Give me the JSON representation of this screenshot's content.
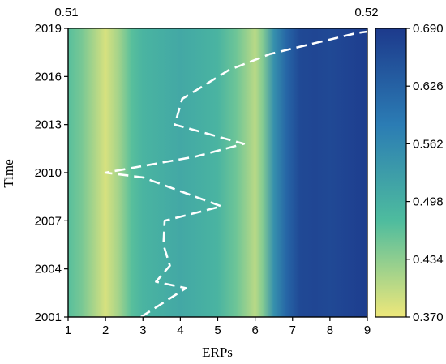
{
  "chart_data": {
    "type": "heatmap",
    "title": "",
    "xlabel": "ERPs",
    "ylabel": "Time",
    "x_ticks": [
      1,
      2,
      3,
      4,
      5,
      6,
      7,
      8,
      9
    ],
    "y_ticks": [
      2001,
      2004,
      2007,
      2010,
      2013,
      2016,
      2019
    ],
    "xlim": [
      1,
      9
    ],
    "ylim": [
      2001,
      2019
    ],
    "top_annotations": {
      "left": "0.51",
      "right": "0.52"
    },
    "colorbar": {
      "ticks": [
        "0.370",
        "0.434",
        "0.498",
        "0.562",
        "0.626",
        "0.690"
      ],
      "range": [
        0.37,
        0.69
      ],
      "colormap": [
        "#eee77a",
        "#4ebc9e",
        "#2b7cb4",
        "#1d3a8c"
      ]
    },
    "column_values": [
      {
        "x": 1.0,
        "v": 0.47
      },
      {
        "x": 1.35,
        "v": 0.45
      },
      {
        "x": 1.65,
        "v": 0.42
      },
      {
        "x": 2.0,
        "v": 0.385
      },
      {
        "x": 2.35,
        "v": 0.42
      },
      {
        "x": 2.7,
        "v": 0.47
      },
      {
        "x": 3.0,
        "v": 0.49
      },
      {
        "x": 3.5,
        "v": 0.5
      },
      {
        "x": 4.0,
        "v": 0.51
      },
      {
        "x": 4.5,
        "v": 0.5
      },
      {
        "x": 5.0,
        "v": 0.49
      },
      {
        "x": 5.5,
        "v": 0.455
      },
      {
        "x": 6.0,
        "v": 0.405
      },
      {
        "x": 6.2,
        "v": 0.44
      },
      {
        "x": 6.5,
        "v": 0.55
      },
      {
        "x": 6.85,
        "v": 0.62
      },
      {
        "x": 7.2,
        "v": 0.665
      },
      {
        "x": 7.6,
        "v": 0.67
      },
      {
        "x": 8.0,
        "v": 0.665
      },
      {
        "x": 8.5,
        "v": 0.675
      },
      {
        "x": 9.0,
        "v": 0.685
      }
    ],
    "dashed_line": {
      "color": "#ffffff",
      "points": [
        {
          "x": 2.95,
          "y": 2001.0
        },
        {
          "x": 4.15,
          "y": 2002.8
        },
        {
          "x": 3.35,
          "y": 2003.2
        },
        {
          "x": 3.72,
          "y": 2004.2
        },
        {
          "x": 3.55,
          "y": 2005.5
        },
        {
          "x": 3.58,
          "y": 2007.0
        },
        {
          "x": 5.1,
          "y": 2007.9
        },
        {
          "x": 3.0,
          "y": 2009.7
        },
        {
          "x": 2.0,
          "y": 2010.0
        },
        {
          "x": 4.4,
          "y": 2011.0
        },
        {
          "x": 5.7,
          "y": 2011.8
        },
        {
          "x": 3.85,
          "y": 2013.0
        },
        {
          "x": 4.05,
          "y": 2014.6
        },
        {
          "x": 5.3,
          "y": 2016.4
        },
        {
          "x": 6.4,
          "y": 2017.4
        },
        {
          "x": 8.7,
          "y": 2018.7
        },
        {
          "x": 9.0,
          "y": 2018.8
        }
      ]
    }
  }
}
